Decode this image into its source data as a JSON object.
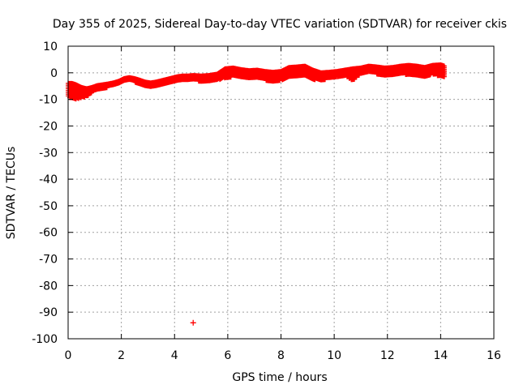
{
  "chart_data": {
    "type": "scatter",
    "title": "Day 355 of 2025, Sidereal Day-to-day VTEC variation (SDTVAR) for receiver ckis",
    "xlabel": "GPS time / hours",
    "ylabel": "SDTVAR / TECUs",
    "xlim": [
      0,
      16
    ],
    "ylim": [
      -100,
      10
    ],
    "x_ticks": [
      0,
      2,
      4,
      6,
      8,
      10,
      12,
      14,
      16
    ],
    "y_ticks": [
      10,
      0,
      -10,
      -20,
      -30,
      -40,
      -50,
      -60,
      -70,
      -80,
      -90,
      -100
    ],
    "x_tick_labels": [
      "0",
      "2",
      "4",
      "6",
      "8",
      "10",
      "12",
      "14",
      "16"
    ],
    "y_tick_labels": [
      "10",
      "0",
      "-10",
      "-20",
      "-30",
      "-40",
      "-50",
      "-60",
      "-70",
      "-80",
      "-90",
      "-100"
    ],
    "grid": true,
    "marker": "+",
    "series": [
      {
        "name": "SDTVAR",
        "color": "#ff0000",
        "band": {
          "x": [
            0.0,
            0.15,
            0.3,
            0.5,
            0.7,
            0.9,
            1.1,
            1.3,
            1.5,
            1.7,
            1.9,
            2.1,
            2.3,
            2.5,
            2.7,
            2.9,
            3.1,
            3.3,
            3.5,
            3.7,
            3.9,
            4.1,
            4.3,
            4.5,
            4.7,
            5.0,
            5.3,
            5.6,
            5.9,
            6.2,
            6.5,
            6.8,
            7.1,
            7.4,
            7.7,
            8.0,
            8.3,
            8.6,
            8.9,
            9.2,
            9.5,
            9.8,
            10.1,
            10.4,
            10.7,
            11.0,
            11.3,
            11.6,
            11.9,
            12.2,
            12.5,
            12.8,
            13.1,
            13.4,
            13.7,
            14.0,
            14.15
          ],
          "upper": [
            -4.0,
            -4.0,
            -4.5,
            -5.5,
            -6.0,
            -5.5,
            -4.8,
            -4.5,
            -4.2,
            -3.8,
            -3.2,
            -2.2,
            -1.8,
            -2.2,
            -2.8,
            -3.5,
            -3.8,
            -3.5,
            -3.0,
            -2.5,
            -2.0,
            -1.5,
            -1.2,
            -1.2,
            -1.0,
            -1.2,
            -1.0,
            -0.5,
            1.5,
            1.8,
            1.2,
            0.8,
            1.0,
            0.5,
            0.2,
            0.5,
            2.0,
            2.2,
            2.5,
            1.0,
            0.0,
            0.2,
            0.5,
            1.0,
            1.5,
            1.8,
            2.5,
            2.2,
            1.8,
            2.0,
            2.5,
            2.8,
            2.5,
            2.0,
            2.8,
            3.0,
            2.5
          ],
          "lower": [
            -9.0,
            -10.0,
            -10.0,
            -9.5,
            -9.0,
            -7.5,
            -6.5,
            -6.0,
            -5.5,
            -5.0,
            -4.5,
            -3.5,
            -3.0,
            -3.5,
            -4.5,
            -5.0,
            -5.2,
            -5.0,
            -4.5,
            -4.0,
            -3.5,
            -3.0,
            -2.8,
            -2.8,
            -2.5,
            -3.5,
            -3.2,
            -2.8,
            -2.0,
            -1.5,
            -2.0,
            -2.5,
            -2.0,
            -2.8,
            -3.5,
            -2.8,
            -1.8,
            -1.5,
            -1.0,
            -2.5,
            -3.0,
            -2.2,
            -1.5,
            -1.2,
            -3.0,
            -0.5,
            0.5,
            -0.5,
            -1.5,
            -0.8,
            -0.5,
            -0.8,
            -1.0,
            -1.5,
            -0.5,
            -1.5,
            -1.8
          ]
        },
        "outliers": [
          {
            "x": 4.7,
            "y": -94
          }
        ]
      }
    ]
  }
}
